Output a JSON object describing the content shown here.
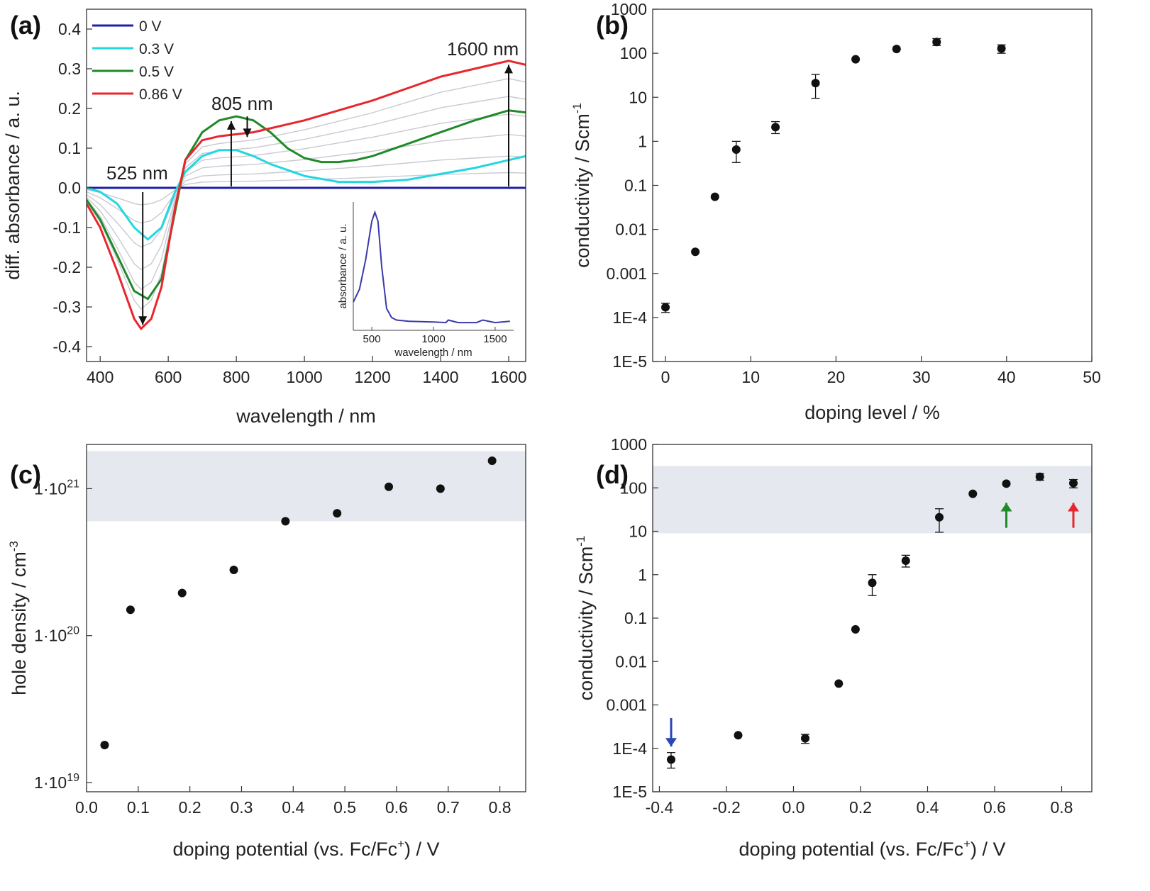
{
  "panels": {
    "a": {
      "label": "(a)"
    },
    "b": {
      "label": "(b)"
    },
    "c": {
      "label": "(c)"
    },
    "d": {
      "label": "(d)"
    }
  },
  "chart_data": [
    {
      "id": "a",
      "type": "line",
      "xlabel": "wavelength / nm",
      "ylabel": "diff. absorbance / a. u.",
      "xlim": [
        360,
        1650
      ],
      "ylim": [
        -0.4,
        0.45
      ],
      "xticks": [
        400,
        600,
        800,
        1000,
        1200,
        1400,
        1600
      ],
      "xtick_labels": [
        "400",
        "600",
        "800",
        "1000",
        "1200",
        "1400",
        "1600"
      ],
      "yticks": [
        -0.4,
        -0.3,
        -0.2,
        -0.1,
        0.0,
        0.1,
        0.2,
        0.3,
        0.4
      ],
      "ytick_labels": [
        "-0.4",
        "-0.3",
        "-0.2",
        "-0.1",
        "0.0",
        "0.1",
        "0.2",
        "0.3",
        "0.4"
      ],
      "legend": {
        "position": "top-left"
      },
      "series": [
        {
          "name": "0 V",
          "color": "#1f1fa8",
          "x": [
            360,
            600,
            800,
            1000,
            1200,
            1400,
            1650
          ],
          "y": [
            0,
            0,
            0,
            0,
            0,
            0,
            0
          ]
        },
        {
          "name": "0.3 V",
          "color": "#23d7df",
          "x": [
            360,
            400,
            450,
            500,
            540,
            580,
            620,
            650,
            700,
            750,
            800,
            850,
            900,
            1000,
            1100,
            1200,
            1300,
            1400,
            1500,
            1600,
            1650
          ],
          "y": [
            0.0,
            -0.01,
            -0.04,
            -0.1,
            -0.13,
            -0.1,
            -0.01,
            0.04,
            0.08,
            0.095,
            0.095,
            0.08,
            0.06,
            0.03,
            0.015,
            0.015,
            0.02,
            0.035,
            0.05,
            0.07,
            0.08
          ]
        },
        {
          "name": "0.5 V",
          "color": "#1e8a2a",
          "x": [
            360,
            400,
            450,
            500,
            540,
            580,
            620,
            650,
            700,
            750,
            800,
            850,
            900,
            950,
            1000,
            1050,
            1100,
            1150,
            1200,
            1300,
            1400,
            1500,
            1600,
            1650
          ],
          "y": [
            -0.03,
            -0.08,
            -0.17,
            -0.26,
            -0.28,
            -0.23,
            -0.06,
            0.07,
            0.14,
            0.17,
            0.18,
            0.17,
            0.14,
            0.1,
            0.075,
            0.065,
            0.065,
            0.07,
            0.08,
            0.11,
            0.14,
            0.17,
            0.195,
            0.19
          ]
        },
        {
          "name": "0.86 V",
          "color": "#e8262d",
          "x": [
            360,
            400,
            450,
            500,
            520,
            550,
            580,
            620,
            650,
            700,
            750,
            800,
            850,
            900,
            1000,
            1100,
            1200,
            1300,
            1400,
            1500,
            1600,
            1650
          ],
          "y": [
            -0.04,
            -0.1,
            -0.21,
            -0.33,
            -0.355,
            -0.33,
            -0.25,
            -0.05,
            0.07,
            0.12,
            0.13,
            0.135,
            0.14,
            0.15,
            0.17,
            0.195,
            0.22,
            0.25,
            0.28,
            0.3,
            0.32,
            0.31
          ]
        }
      ],
      "annotations": [
        {
          "text": "525 nm",
          "color": "#2727a5",
          "x": 525
        },
        {
          "text": "805 nm",
          "color": "#1e8a2a",
          "x": 805
        },
        {
          "text": "1600 nm",
          "color": "#e8262d",
          "x": 1600
        }
      ],
      "inset": {
        "type": "line",
        "xlabel": "wavelength / nm",
        "ylabel": "absorbance / a. u.",
        "xticks": [
          500,
          1000,
          1500
        ],
        "xtick_labels": [
          "500",
          "1000",
          "1500"
        ],
        "xlim": [
          350,
          1650
        ],
        "ylim": [
          0,
          1.0
        ],
        "color": "#3a3aa8",
        "x": [
          350,
          400,
          450,
          500,
          525,
          550,
          580,
          620,
          660,
          700,
          800,
          1000,
          1100,
          1120,
          1200,
          1350,
          1400,
          1500,
          1620
        ],
        "y": [
          0.22,
          0.32,
          0.55,
          0.85,
          0.92,
          0.85,
          0.5,
          0.17,
          0.1,
          0.08,
          0.07,
          0.065,
          0.06,
          0.08,
          0.06,
          0.06,
          0.08,
          0.06,
          0.07
        ]
      }
    },
    {
      "id": "b",
      "type": "scatter",
      "xlabel": "doping level / %",
      "ylabel": "conductivity / Scm",
      "ylabel_sup": "-1",
      "xlim": [
        -1.5,
        50
      ],
      "ylim": [
        1e-05,
        1000
      ],
      "yscale": "log",
      "xticks": [
        0,
        10,
        20,
        30,
        40,
        50
      ],
      "xtick_labels": [
        "0",
        "10",
        "20",
        "30",
        "40",
        "50"
      ],
      "yticks": [
        1e-05,
        0.0001,
        0.001,
        0.01,
        0.1,
        1,
        10,
        100,
        1000
      ],
      "ytick_labels": [
        "1E-5",
        "1E-4",
        "0.001",
        "0.01",
        "0.1",
        "1",
        "10",
        "100",
        "1000"
      ],
      "points": [
        {
          "x": 0,
          "y": 0.00017,
          "lo": 0.00013,
          "hi": 0.00021
        },
        {
          "x": 3.5,
          "y": 0.0031,
          "lo": 0.0031,
          "hi": 0.0031
        },
        {
          "x": 5.8,
          "y": 0.055,
          "lo": 0.055,
          "hi": 0.055
        },
        {
          "x": 8.3,
          "y": 0.65,
          "lo": 0.33,
          "hi": 1.0
        },
        {
          "x": 12.9,
          "y": 2.1,
          "lo": 1.5,
          "hi": 2.8
        },
        {
          "x": 17.6,
          "y": 21,
          "lo": 9.5,
          "hi": 33
        },
        {
          "x": 22.3,
          "y": 73,
          "lo": 73,
          "hi": 73
        },
        {
          "x": 27.1,
          "y": 125,
          "lo": 125,
          "hi": 125
        },
        {
          "x": 31.8,
          "y": 180,
          "lo": 150,
          "hi": 215
        },
        {
          "x": 39.4,
          "y": 128,
          "lo": 100,
          "hi": 155
        }
      ]
    },
    {
      "id": "c",
      "type": "scatter",
      "xlabel": "doping potential (vs. Fc/Fc",
      "xlabel_sup": "+",
      "xlabel_tail": ") / V",
      "ylabel": "hole density / cm",
      "ylabel_sup": "-3",
      "xlim": [
        0,
        0.85
      ],
      "ylim": [
        1e+19,
        2e+21
      ],
      "yscale": "log",
      "xticks": [
        0.0,
        0.1,
        0.2,
        0.3,
        0.4,
        0.5,
        0.6,
        0.7,
        0.8
      ],
      "xtick_labels": [
        "0.0",
        "0.1",
        "0.2",
        "0.3",
        "0.4",
        "0.5",
        "0.6",
        "0.7",
        "0.8"
      ],
      "yticks": [
        1e+19,
        1e+20,
        1e+21
      ],
      "ytick_labels": [
        {
          "base": "1·10",
          "exp": "19"
        },
        {
          "base": "1·10",
          "exp": "20"
        },
        {
          "base": "1·10",
          "exp": "21"
        }
      ],
      "shaded_band": {
        "y0": 6e+20,
        "y1": 1.8e+21
      },
      "points": [
        {
          "x": 0.035,
          "y": 1.8e+19
        },
        {
          "x": 0.085,
          "y": 1.5e+20
        },
        {
          "x": 0.185,
          "y": 1.95e+20
        },
        {
          "x": 0.285,
          "y": 2.8e+20
        },
        {
          "x": 0.385,
          "y": 6e+20
        },
        {
          "x": 0.485,
          "y": 6.8e+20
        },
        {
          "x": 0.585,
          "y": 1.03e+21
        },
        {
          "x": 0.685,
          "y": 1e+21
        },
        {
          "x": 0.785,
          "y": 1.55e+21
        }
      ]
    },
    {
      "id": "d",
      "type": "scatter",
      "xlabel": "doping potential (vs. Fc/Fc",
      "xlabel_sup": "+",
      "xlabel_tail": ") / V",
      "ylabel": "conductivity / Scm",
      "ylabel_sup": "-1",
      "xlim": [
        -0.42,
        0.89
      ],
      "ylim": [
        1e-05,
        1000
      ],
      "yscale": "log",
      "xticks": [
        -0.4,
        -0.2,
        0.0,
        0.2,
        0.4,
        0.6,
        0.8
      ],
      "xtick_labels": [
        "-0.4",
        "-0.2",
        "0.0",
        "0.2",
        "0.4",
        "0.6",
        "0.8"
      ],
      "yticks": [
        1e-05,
        0.0001,
        0.001,
        0.01,
        0.1,
        1,
        10,
        100,
        1000
      ],
      "ytick_labels": [
        "1E-5",
        "1E-4",
        "0.001",
        "0.01",
        "0.1",
        "1",
        "10",
        "100",
        "1000"
      ],
      "shaded_band": {
        "y0": 9,
        "y1": 320
      },
      "points": [
        {
          "x": -0.365,
          "y": 5.5e-05,
          "lo": 3.5e-05,
          "hi": 8e-05
        },
        {
          "x": -0.165,
          "y": 0.0002,
          "lo": 0.0002,
          "hi": 0.0002
        },
        {
          "x": 0.035,
          "y": 0.00017,
          "lo": 0.00013,
          "hi": 0.00021
        },
        {
          "x": 0.135,
          "y": 0.0031,
          "lo": 0.0031,
          "hi": 0.0031
        },
        {
          "x": 0.185,
          "y": 0.055,
          "lo": 0.055,
          "hi": 0.055
        },
        {
          "x": 0.235,
          "y": 0.65,
          "lo": 0.33,
          "hi": 1.0
        },
        {
          "x": 0.335,
          "y": 2.1,
          "lo": 1.5,
          "hi": 2.8
        },
        {
          "x": 0.435,
          "y": 21,
          "lo": 9.5,
          "hi": 33
        },
        {
          "x": 0.535,
          "y": 73,
          "lo": 73,
          "hi": 73
        },
        {
          "x": 0.635,
          "y": 125,
          "lo": 125,
          "hi": 125
        },
        {
          "x": 0.735,
          "y": 180,
          "lo": 150,
          "hi": 215
        },
        {
          "x": 0.835,
          "y": 128,
          "lo": 100,
          "hi": 155
        }
      ],
      "markers": [
        {
          "x": -0.365,
          "direction": "down",
          "color": "#2847b8"
        },
        {
          "x": 0.635,
          "direction": "up",
          "color": "#1e8a2a"
        },
        {
          "x": 0.835,
          "direction": "up",
          "color": "#e8262d"
        }
      ]
    }
  ]
}
